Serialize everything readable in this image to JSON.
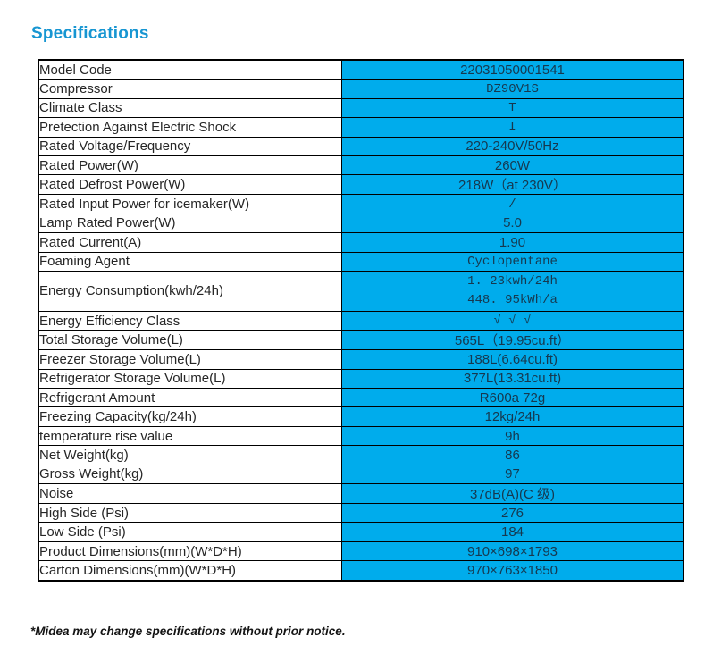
{
  "page": {
    "title": "Specifications",
    "footnote": "*Midea may change specifications without prior notice."
  },
  "colors": {
    "accent_blue": "#1796D2",
    "value_cell_cyan": "#00ACEC",
    "table_border": "#000000"
  },
  "table": {
    "rows": [
      {
        "label": "Model Code",
        "value": "22031050001541",
        "font": "sans"
      },
      {
        "label": "Compressor",
        "value": "DZ90V1S",
        "font": "typewriter"
      },
      {
        "label": "Climate Class",
        "value": "T",
        "font": "typewriter"
      },
      {
        "label": "Pretection Against Electric Shock",
        "value": "I",
        "font": "typewriter"
      },
      {
        "label": "Rated Voltage/Frequency",
        "value": "220-240V/50Hz",
        "font": "sans"
      },
      {
        "label": "Rated Power(W)",
        "value": "260W",
        "font": "sans"
      },
      {
        "label": "Rated Defrost Power(W)",
        "value": "218W（at 230V）",
        "font": "sans"
      },
      {
        "label": "Rated Input Power for icemaker(W)",
        "value": "/",
        "font": "typewriter"
      },
      {
        "label": "Lamp Rated Power(W)",
        "value": "5.0",
        "font": "sans"
      },
      {
        "label": "Rated Current(A)",
        "value": "1.90",
        "font": "sans"
      },
      {
        "label": "Foaming Agent",
        "value": "Cyclopentane",
        "font": "typewriter"
      },
      {
        "label": "Energy Consumption(kwh/24h)",
        "value": [
          "1. 23kwh/24h",
          "448. 95kWh/a"
        ],
        "font": "typewriter",
        "tall": true
      },
      {
        "label": "Energy Efficiency Class",
        "value": "√ √ √",
        "font": "typewriter"
      },
      {
        "label": "Total Storage Volume(L)",
        "value": "565L（19.95cu.ft）",
        "font": "sans"
      },
      {
        "label": "Freezer Storage Volume(L)",
        "value": "188L(6.64cu.ft)",
        "font": "sans"
      },
      {
        "label": "Refrigerator Storage Volume(L)",
        "value": "377L(13.31cu.ft)",
        "font": "sans"
      },
      {
        "label": "Refrigerant Amount",
        "value": "R600a 72g",
        "font": "sans"
      },
      {
        "label": "Freezing Capacity(kg/24h)",
        "value": "12kg/24h",
        "font": "sans"
      },
      {
        "label": "temperature rise value",
        "value": "9h",
        "font": "sans"
      },
      {
        "label": "Net Weight(kg)",
        "value": "86",
        "font": "sans"
      },
      {
        "label": "Gross Weight(kg)",
        "value": "97",
        "font": "sans"
      },
      {
        "label": "Noise",
        "value": "37dB(A)(C 级)",
        "font": "sans"
      },
      {
        "label": "High Side (Psi)",
        "value": "276",
        "font": "sans"
      },
      {
        "label": "Low Side (Psi)",
        "value": "184",
        "font": "sans"
      },
      {
        "label": "Product Dimensions(mm)(W*D*H)",
        "value": "910×698×1793",
        "font": "sans"
      },
      {
        "label": "Carton Dimensions(mm)(W*D*H)",
        "value": "970×763×1850",
        "font": "sans"
      }
    ]
  }
}
